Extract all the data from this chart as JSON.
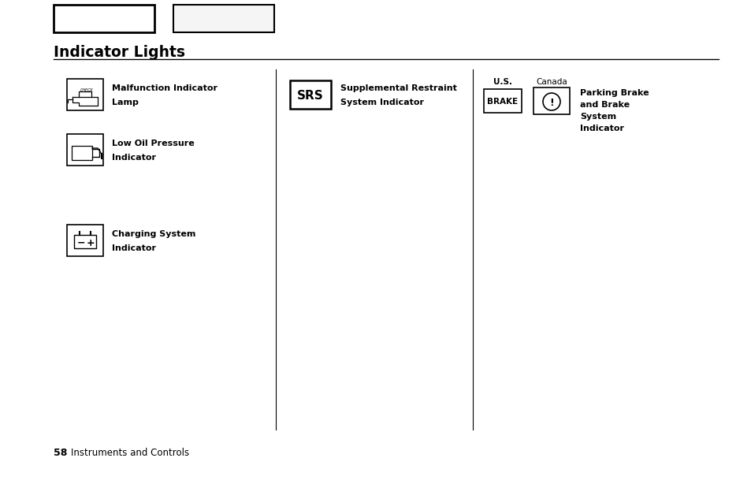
{
  "bg_color": "#ffffff",
  "section_title": "Indicator Lights",
  "footer_page": "58",
  "footer_text": "Instruments and Controls",
  "fig_w": 9.54,
  "fig_h": 6.14,
  "dpi": 100
}
